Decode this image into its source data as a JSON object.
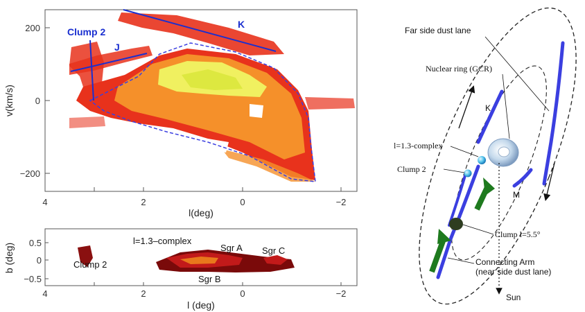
{
  "top_panel": {
    "y_axis_label": "v(km/s)",
    "x_axis_label": "l(deg)",
    "y_ticks": [
      "200",
      "0",
      "−200"
    ],
    "x_ticks": [
      "4",
      "2",
      "0",
      "−2"
    ],
    "labels": {
      "clump2": "Clump 2",
      "j": "J",
      "k": "K"
    }
  },
  "bottom_panel": {
    "y_axis_label": "b (deg)",
    "x_axis_label": "l (deg)",
    "y_ticks": [
      "0.5",
      "0",
      "−0.5"
    ],
    "x_ticks": [
      "4",
      "2",
      "0",
      "−2"
    ],
    "labels": {
      "complex": "l=1.3–complex",
      "sgr_a": "Sgr A",
      "sgr_b": "Sgr B",
      "sgr_c": "Sgr C",
      "clump2": "Clump 2"
    }
  },
  "schematic": {
    "far_side": "Far side dust lane",
    "nuclear_ring": "Nuclear ring (GCR)",
    "k": "K",
    "complex": "l=1.3-complex",
    "clump2": "Clump 2",
    "m": "M",
    "clump55": "Clump l=5.5°",
    "connecting_arm": "Connecting Arm",
    "near_side": "(near side dust lane)",
    "sun": "Sun"
  },
  "colors": {
    "blue_annotation": "#1a2fd0",
    "lane_blue": "#3b3fe0",
    "arrow_green": "#1e7a1e",
    "emission_red": "#e8321c",
    "emission_orange": "#f5902a",
    "emission_yellow": "#f0f060",
    "ring_blue": "#b9d3ea"
  }
}
